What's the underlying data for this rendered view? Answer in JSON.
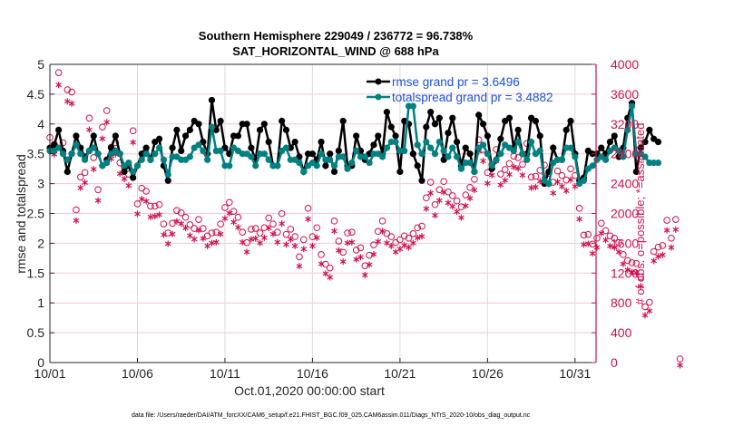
{
  "chart_data": {
    "type": "line",
    "title": "Southern Hemisphere 229049 / 236772 = 96.738%",
    "subtitle": "SAT_HORIZONTAL_WIND @ 688 hPa",
    "xlabel": "Oct.01,2020 00:00:00 start",
    "ylabel": "rmse and totalspread",
    "ylabel_right": "# of obs: o=possible; *=assimilated",
    "footnote": "data file: /Users/raeder/DAI/ATM_forcXX/CAM6_setup/f.e21.FHIST_BGC.f09_025.CAM6assim.011/Diags_NTrS_2020-10/obs_diag_output.nc",
    "x_unit": "days since Oct.01,2020 00:00",
    "x_step_days": 0.25,
    "xlim": [
      0,
      31.2
    ],
    "ylim": [
      0,
      5
    ],
    "ylim_right": [
      0,
      4000
    ],
    "xticks": [
      0,
      5,
      10,
      15,
      20,
      25,
      30
    ],
    "xtick_labels": [
      "10/01",
      "10/06",
      "10/11",
      "10/16",
      "10/21",
      "10/26",
      "10/31"
    ],
    "yticks": [
      0,
      0.5,
      1,
      1.5,
      2,
      2.5,
      3,
      3.5,
      4,
      4.5,
      5
    ],
    "ytick_labels": [
      "0",
      "0.5",
      "1",
      "1.5",
      "2",
      "2.5",
      "3",
      "3.5",
      "4",
      "4.5",
      "5"
    ],
    "yticks_right": [
      0,
      400,
      800,
      1200,
      1600,
      2000,
      2400,
      2800,
      3200,
      3600,
      4000
    ],
    "ytick_labels_right": [
      "0",
      "400",
      "800",
      "1200",
      "1600",
      "2000",
      "2400",
      "2800",
      "3200",
      "3600",
      "4000"
    ],
    "grid": true,
    "legend_position": "top-right",
    "series": [
      {
        "name": "rmse grand pr = 3.6496",
        "axis": "left",
        "color": "#000000",
        "marker": "star",
        "values": [
          3.6,
          3.65,
          3.9,
          3.55,
          3.2,
          3.5,
          3.8,
          3.6,
          3.45,
          3.55,
          3.8,
          3.5,
          3.3,
          3.4,
          3.6,
          3.8,
          3.5,
          3.2,
          3.3,
          3.1,
          3.3,
          3.5,
          3.6,
          3.4,
          3.7,
          3.75,
          3.3,
          3.05,
          3.6,
          3.9,
          3.55,
          3.8,
          3.9,
          4.05,
          4.0,
          3.7,
          3.5,
          4.4,
          3.9,
          4.05,
          3.6,
          3.5,
          3.8,
          3.8,
          4.0,
          4.0,
          3.6,
          3.4,
          3.9,
          4.0,
          3.7,
          3.3,
          3.3,
          4.05,
          3.9,
          3.6,
          3.7,
          3.45,
          3.2,
          3.5,
          3.5,
          3.4,
          3.7,
          3.3,
          3.5,
          3.2,
          3.55,
          4.05,
          3.3,
          3.3,
          3.8,
          3.55,
          3.4,
          3.5,
          3.65,
          3.8,
          3.5,
          4.2,
          3.95,
          3.8,
          3.2,
          4.05,
          4.0,
          3.5,
          3.3,
          3.05,
          3.95,
          4.2,
          4.0,
          4.1,
          3.4,
          3.85,
          4.1,
          3.7,
          3.3,
          3.6,
          3.5,
          3.2,
          4.15,
          4.0,
          3.8,
          3.25,
          3.4,
          3.75,
          4.05,
          4.1,
          3.6,
          3.9,
          3.5,
          3.5,
          4.1,
          4.05,
          3.8,
          3.0,
          3.2,
          3.6,
          3.4,
          3.4,
          3.9,
          4.05,
          3.5,
          3.05,
          3.1,
          3.55
        ],
        "values_tail": [
          3.5,
          3.5,
          3.6,
          3.5,
          3.7,
          3.8,
          3.45,
          3.6,
          4.1,
          4.35,
          3.2,
          3.6,
          3.7,
          3.9,
          3.75,
          3.7
        ]
      },
      {
        "name": "totalspread grand pr = 3.4882",
        "axis": "left",
        "color": "#008080",
        "marker": "circle",
        "values": [
          3.55,
          3.55,
          3.6,
          3.5,
          3.4,
          3.5,
          3.65,
          3.5,
          3.4,
          3.55,
          3.6,
          3.5,
          3.3,
          3.35,
          3.5,
          3.55,
          3.5,
          3.3,
          3.35,
          3.2,
          3.3,
          3.4,
          3.5,
          3.4,
          3.5,
          3.6,
          3.4,
          3.15,
          3.45,
          3.45,
          3.4,
          3.4,
          3.45,
          3.6,
          3.65,
          3.55,
          3.4,
          3.95,
          3.55,
          3.55,
          3.3,
          3.3,
          3.6,
          3.55,
          3.5,
          3.5,
          3.45,
          3.3,
          3.5,
          3.5,
          3.4,
          3.3,
          3.3,
          3.55,
          3.6,
          3.4,
          3.4,
          3.35,
          3.2,
          3.3,
          3.35,
          3.3,
          3.5,
          3.4,
          3.4,
          3.3,
          3.45,
          3.45,
          3.25,
          3.35,
          3.55,
          3.45,
          3.45,
          3.35,
          3.5,
          3.5,
          3.45,
          3.6,
          3.7,
          3.7,
          3.55,
          3.55,
          4.3,
          4.3,
          3.65,
          3.5,
          3.7,
          3.6,
          3.5,
          3.7,
          3.55,
          3.45,
          3.6,
          3.45,
          3.25,
          3.35,
          3.35,
          3.2,
          3.6,
          3.65,
          3.5,
          3.3,
          3.4,
          3.5,
          3.65,
          3.6,
          3.55,
          3.7,
          3.5,
          3.4,
          3.7,
          3.5,
          3.55,
          3.05,
          3.0,
          3.35,
          3.4,
          3.4,
          3.6,
          3.6,
          3.45,
          3.0,
          3.05,
          3.25
        ],
        "values_tail": [
          3.3,
          3.4,
          3.45,
          3.4,
          3.55,
          3.6,
          3.55,
          3.45,
          3.9,
          4.3,
          3.5,
          3.5,
          3.45,
          3.35,
          3.35,
          3.35
        ]
      },
      {
        "name": "possible obs",
        "axis": "right",
        "color": "#d0104c",
        "marker": "o",
        "values": [
          2970,
          2880,
          3840,
          2900,
          3610,
          3580,
          2000,
          2440,
          2500,
          3230,
          2700,
          2270,
          3110,
          3330,
          2840,
          2900,
          2630,
          2570,
          2480,
          3060,
          2080,
          2290,
          2250,
          2050,
          2050,
          2070,
          1810,
          1690,
          1820,
          1990,
          1960,
          1900,
          1800,
          1750,
          1870,
          1750,
          1650,
          1690,
          1700,
          1810,
          2030,
          2100,
          1980,
          1900,
          1700,
          1560,
          1740,
          1750,
          1690,
          1760,
          1890,
          1810,
          1700,
          1950,
          1670,
          1740,
          1640,
          1370,
          1600,
          2020,
          1640,
          1760,
          1400,
          1270,
          1220,
          1850,
          1580,
          1430,
          1690,
          1700,
          1460,
          1490,
          1250,
          1390,
          1530,
          1710,
          1850,
          1680,
          1640,
          1560,
          1600,
          1650,
          1620,
          1680,
          1760,
          1780,
          2160,
          2370,
          2070,
          2270,
          2380,
          2240,
          2190,
          2120,
          2040,
          2200,
          2300,
          2410,
          2940,
          2810,
          2500,
          2610,
          2810,
          2480,
          2540,
          2620,
          2720,
          2700,
          2610,
          2890,
          2440,
          2450,
          2530,
          2600,
          2490,
          2370,
          2520,
          2460,
          2400,
          2550,
          2460,
          2020,
          1660,
          1670
        ],
        "values_tail": [
          1540,
          1620,
          1820,
          1720,
          1650,
          1620,
          1560,
          1400,
          1320,
          1290,
          1280,
          1100,
          700,
          760,
          1440,
          1500,
          1520,
          1860,
          1620,
          1870,
          0
        ]
      },
      {
        "name": "assimilated obs",
        "axis": "right",
        "color": "#d0104c",
        "marker": "asterisk",
        "values": [
          2900,
          2830,
          3760,
          2840,
          3540,
          3510,
          1940,
          2380,
          2450,
          3160,
          2630,
          2210,
          3040,
          3260,
          2770,
          2830,
          2570,
          2500,
          2410,
          2990,
          2030,
          2230,
          2200,
          1990,
          2000,
          2020,
          1750,
          1630,
          1760,
          1930,
          1900,
          1840,
          1740,
          1690,
          1810,
          1700,
          1600,
          1640,
          1650,
          1760,
          1970,
          2040,
          1920,
          1850,
          1650,
          1520,
          1690,
          1700,
          1640,
          1710,
          1840,
          1760,
          1650,
          1900,
          1620,
          1690,
          1600,
          1330,
          1560,
          1960,
          1600,
          1710,
          1360,
          1230,
          1180,
          1800,
          1540,
          1390,
          1640,
          1650,
          1420,
          1450,
          1210,
          1350,
          1490,
          1660,
          1800,
          1640,
          1600,
          1520,
          1560,
          1610,
          1580,
          1640,
          1710,
          1730,
          2100,
          2310,
          2010,
          2210,
          2320,
          2180,
          2130,
          2060,
          1980,
          2140,
          2240,
          2350,
          2870,
          2740,
          2440,
          2550,
          2740,
          2420,
          2480,
          2560,
          2660,
          2640,
          2550,
          2820,
          2380,
          2390,
          2470,
          2540,
          2430,
          2310,
          2460,
          2400,
          2340,
          2490,
          2400,
          1960,
          1620,
          1630
        ],
        "values_tail": [
          1500,
          1580,
          1770,
          1680,
          1600,
          1580,
          1520,
          1360,
          1280,
          1250,
          1240,
          1060,
          670,
          730,
          1400,
          1460,
          1480,
          1810,
          1580,
          1820,
          0
        ]
      }
    ]
  }
}
